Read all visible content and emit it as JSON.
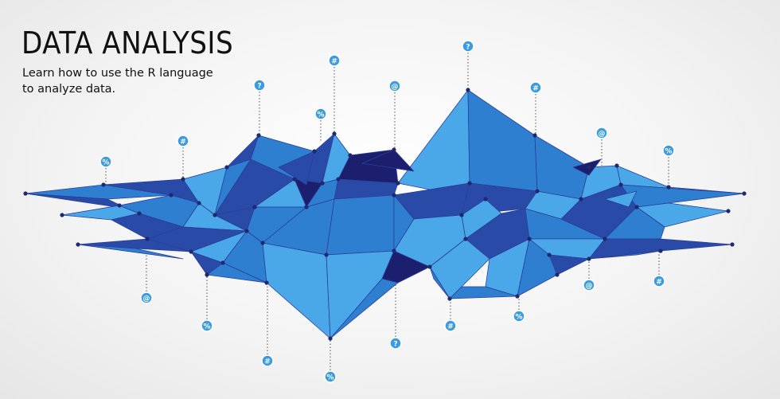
{
  "header": {
    "title": "DATA ANALYSIS",
    "subtitle_lines": [
      "Learn how to use the R language",
      "to analyze data."
    ]
  },
  "illustration": {
    "description_colors": {
      "light": "#4aa8e8",
      "mid": "#2f7fd0",
      "dark": "#2a4aa8",
      "navy": "#1b1f6e",
      "node": "#1f2a6e",
      "pin_fill": "#3a9be0"
    },
    "pins": [
      {
        "symbol": "?",
        "name": "question"
      },
      {
        "symbol": "#",
        "name": "hash"
      },
      {
        "symbol": "@",
        "name": "at"
      },
      {
        "symbol": "%",
        "name": "percent"
      }
    ]
  }
}
